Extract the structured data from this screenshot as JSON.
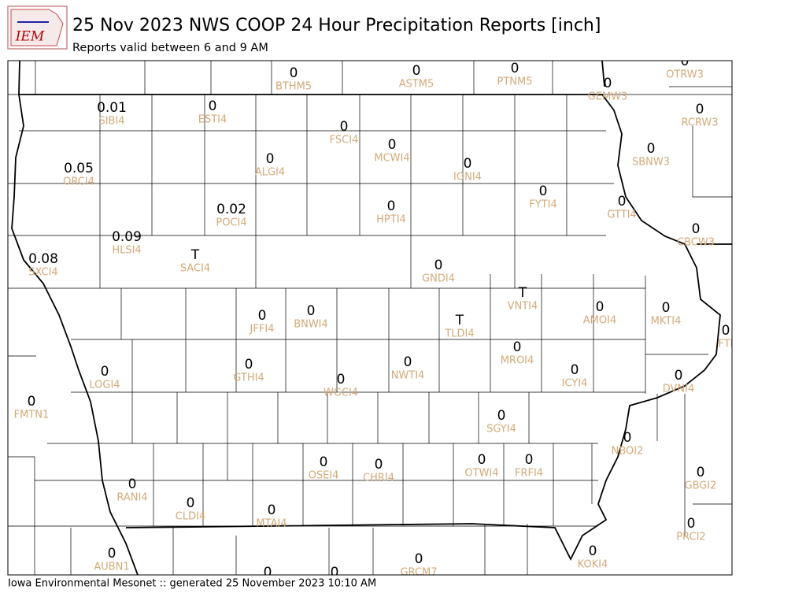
{
  "header": {
    "logo_text": "IEM",
    "title": "25 Nov 2023 NWS COOP 24 Hour Precipitation Reports [inch]",
    "subtitle": "Reports valid between 6 and 9 AM"
  },
  "footer": "Iowa Environmental Mesonet :: generated 25 November 2023 10:10 AM",
  "stations": [
    {
      "id": "BTHM5",
      "value": 0
    },
    {
      "id": "ASTM5",
      "value": 0
    },
    {
      "id": "PTNM5",
      "value": 0
    },
    {
      "id": "OTRW3",
      "value": 0
    },
    {
      "id": "GEMW3",
      "value": 0
    },
    {
      "id": "RCRW3",
      "value": 0
    },
    {
      "id": "SIBI4",
      "value": 0.01
    },
    {
      "id": "ESTI4",
      "value": 0
    },
    {
      "id": "FSCI4",
      "value": 0
    },
    {
      "id": "MCWI4",
      "value": 0
    },
    {
      "id": "SBNW3",
      "value": 0
    },
    {
      "id": "ORCI4",
      "value": 0.05
    },
    {
      "id": "ALGI4",
      "value": 0
    },
    {
      "id": "IONI4",
      "value": 0
    },
    {
      "id": "FYTI4",
      "value": 0
    },
    {
      "id": "HPTI4",
      "value": 0
    },
    {
      "id": "GTTI4",
      "value": 0
    },
    {
      "id": "POCI4",
      "value": 0.02
    },
    {
      "id": "CBCW3",
      "value": 0
    },
    {
      "id": "HLSI4",
      "value": 0.09
    },
    {
      "id": "SACI4",
      "value": "T"
    },
    {
      "id": "SXCI4",
      "value": 0.08
    },
    {
      "id": "GNDI4",
      "value": 0
    },
    {
      "id": "VNTI4",
      "value": "T"
    },
    {
      "id": "AMOI4",
      "value": 0
    },
    {
      "id": "MKTI4",
      "value": 0
    },
    {
      "id": "JFFI4",
      "value": 0
    },
    {
      "id": "BNWI4",
      "value": 0
    },
    {
      "id": "TLDI4",
      "value": "T"
    },
    {
      "id": "FTI",
      "value": 0
    },
    {
      "id": "MROI4",
      "value": 0
    },
    {
      "id": "LOGI4",
      "value": 0
    },
    {
      "id": "GTHI4",
      "value": 0
    },
    {
      "id": "NWTI4",
      "value": 0
    },
    {
      "id": "ICYI4",
      "value": 0
    },
    {
      "id": "DVNI4",
      "value": 0
    },
    {
      "id": "WGCI4",
      "value": 0
    },
    {
      "id": "FMTN1",
      "value": 0
    },
    {
      "id": "SGYI4",
      "value": 0
    },
    {
      "id": "NBOI2",
      "value": 0
    },
    {
      "id": "GBGI2",
      "value": 0
    },
    {
      "id": "OSEI4",
      "value": 0
    },
    {
      "id": "CHRI4",
      "value": 0
    },
    {
      "id": "OTWI4",
      "value": 0
    },
    {
      "id": "FRFI4",
      "value": 0
    },
    {
      "id": "RANI4",
      "value": 0
    },
    {
      "id": "CLDI4",
      "value": 0
    },
    {
      "id": "MTAI4",
      "value": 0
    },
    {
      "id": "PRCI2",
      "value": 0
    },
    {
      "id": "AUBN1",
      "value": 0
    },
    {
      "id": "GRCM7",
      "value": 0
    },
    {
      "id": "KOKI4",
      "value": 0
    },
    {
      "value": 0
    },
    {
      "value": 0
    }
  ]
}
